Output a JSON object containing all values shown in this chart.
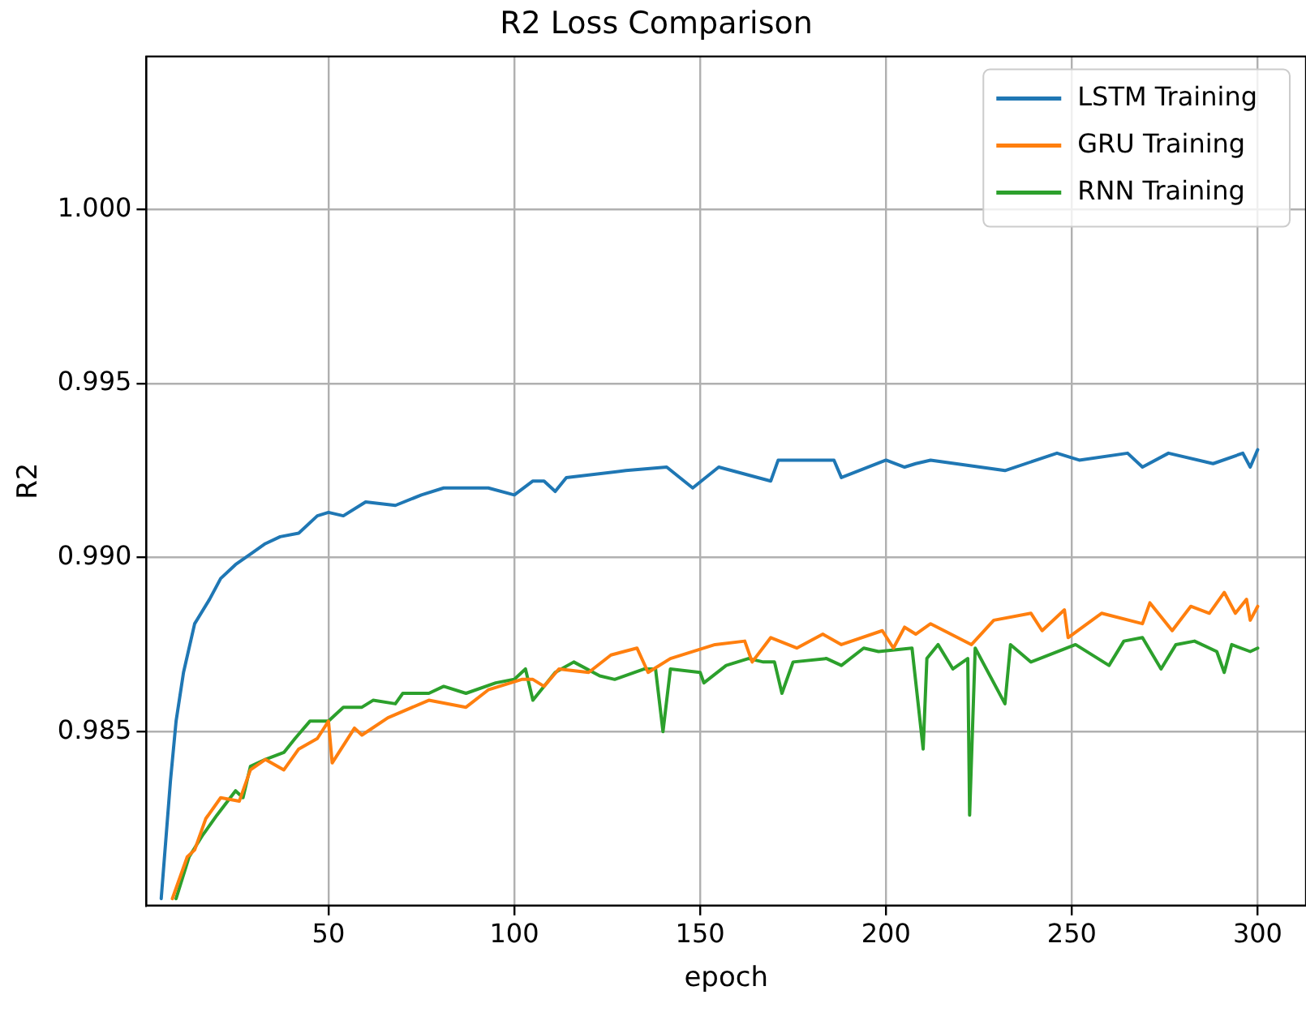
{
  "chart_data": {
    "type": "line",
    "title": "R2 Loss Comparison",
    "xlabel": "epoch",
    "ylabel": "R2",
    "xlim": [
      1,
      313
    ],
    "xticks": [
      50,
      100,
      150,
      200,
      250,
      300
    ],
    "ylim": [
      0.98,
      1.0044
    ],
    "yticks": [
      0.985,
      {
        "value": 0.99,
        "label": "0.990"
      },
      0.995,
      {
        "value": 1,
        "label": "1.000"
      }
    ],
    "grid": true,
    "legend": "top right",
    "marker": "none",
    "line_style": "solid",
    "series": [
      {
        "name": "LSTM Training",
        "color": "#1f77b4",
        "x": [
          5,
          7.5,
          9,
          11,
          14,
          18,
          21,
          25,
          29,
          33,
          37,
          42,
          47,
          50,
          54,
          60,
          68,
          75,
          81,
          93,
          100,
          105,
          108,
          111,
          114,
          130,
          141,
          148,
          155,
          169,
          171,
          186,
          188,
          200,
          205,
          208,
          212,
          232,
          246,
          252,
          265,
          269,
          276,
          288,
          296,
          298,
          300
        ],
        "values": [
          0.9802,
          0.9836,
          0.9853,
          0.9867,
          0.9881,
          0.9888,
          0.9894,
          0.9898,
          0.9901,
          0.9904,
          0.9906,
          0.9907,
          0.9912,
          0.9913,
          0.9912,
          0.9916,
          0.9915,
          0.9918,
          0.992,
          0.992,
          0.9918,
          0.9922,
          0.9922,
          0.9919,
          0.9923,
          0.9925,
          0.9926,
          0.992,
          0.9926,
          0.9922,
          0.9928,
          0.9928,
          0.9923,
          0.9928,
          0.9926,
          0.9927,
          0.9928,
          0.9925,
          0.993,
          0.9928,
          0.993,
          0.9926,
          0.993,
          0.9927,
          0.993,
          0.9926,
          0.9931
        ]
      },
      {
        "name": "GRU Training",
        "color": "#ff7f0e",
        "x": [
          8,
          12,
          14,
          17,
          21,
          26,
          29,
          33,
          38,
          42,
          47,
          50,
          51,
          57,
          59,
          66,
          77,
          87,
          93,
          102,
          105,
          108,
          112,
          120,
          126,
          133,
          136,
          142,
          154,
          162,
          164,
          169,
          176,
          183,
          188,
          199,
          202,
          205,
          208,
          212,
          223,
          229,
          239,
          242,
          248,
          249,
          258,
          269,
          271,
          277,
          282,
          287,
          291,
          294,
          297,
          298,
          300
        ],
        "values": [
          0.9802,
          0.9814,
          0.9816,
          0.9825,
          0.9831,
          0.983,
          0.9839,
          0.9842,
          0.9839,
          0.9845,
          0.9848,
          0.9853,
          0.9841,
          0.9851,
          0.9849,
          0.9854,
          0.9859,
          0.9857,
          0.9862,
          0.9865,
          0.9865,
          0.9863,
          0.9868,
          0.9867,
          0.9872,
          0.9874,
          0.9867,
          0.9871,
          0.9875,
          0.9876,
          0.987,
          0.9877,
          0.9874,
          0.9878,
          0.9875,
          0.9879,
          0.9874,
          0.988,
          0.9878,
          0.9881,
          0.9875,
          0.9882,
          0.9884,
          0.9879,
          0.9885,
          0.9877,
          0.9884,
          0.9881,
          0.9887,
          0.9879,
          0.9886,
          0.9884,
          0.989,
          0.9884,
          0.9888,
          0.9882,
          0.9886
        ]
      },
      {
        "name": "RNN Training",
        "color": "#2ca02c",
        "x": [
          9,
          12.5,
          16,
          20,
          25,
          27,
          29,
          33,
          38,
          41,
          45,
          50,
          54,
          59,
          62,
          68,
          70,
          77,
          81,
          87,
          95,
          100,
          103,
          105,
          111,
          116,
          123,
          127,
          135,
          138,
          140,
          142,
          150,
          151,
          157,
          163,
          167,
          170,
          172,
          175,
          184,
          188,
          194,
          198,
          207,
          210,
          211,
          214,
          218,
          222,
          222.5,
          224,
          232,
          233.5,
          239,
          251,
          260,
          264,
          269,
          274,
          278,
          283,
          289,
          291,
          293,
          298,
          300
        ],
        "values": [
          0.9802,
          0.9814,
          0.982,
          0.9826,
          0.9833,
          0.9831,
          0.984,
          0.9842,
          0.9844,
          0.9848,
          0.9853,
          0.9853,
          0.9857,
          0.9857,
          0.9859,
          0.9858,
          0.9861,
          0.9861,
          0.9863,
          0.9861,
          0.9864,
          0.9865,
          0.9868,
          0.9859,
          0.9867,
          0.987,
          0.9866,
          0.9865,
          0.9868,
          0.9868,
          0.985,
          0.9868,
          0.9867,
          0.9864,
          0.9869,
          0.9871,
          0.987,
          0.987,
          0.9861,
          0.987,
          0.9871,
          0.9869,
          0.9874,
          0.9873,
          0.9874,
          0.9845,
          0.9871,
          0.9875,
          0.9868,
          0.9871,
          0.9826,
          0.9874,
          0.9858,
          0.9875,
          0.987,
          0.9875,
          0.9869,
          0.9876,
          0.9877,
          0.9868,
          0.9875,
          0.9876,
          0.9873,
          0.9867,
          0.9875,
          0.9873,
          0.9874
        ]
      }
    ]
  }
}
